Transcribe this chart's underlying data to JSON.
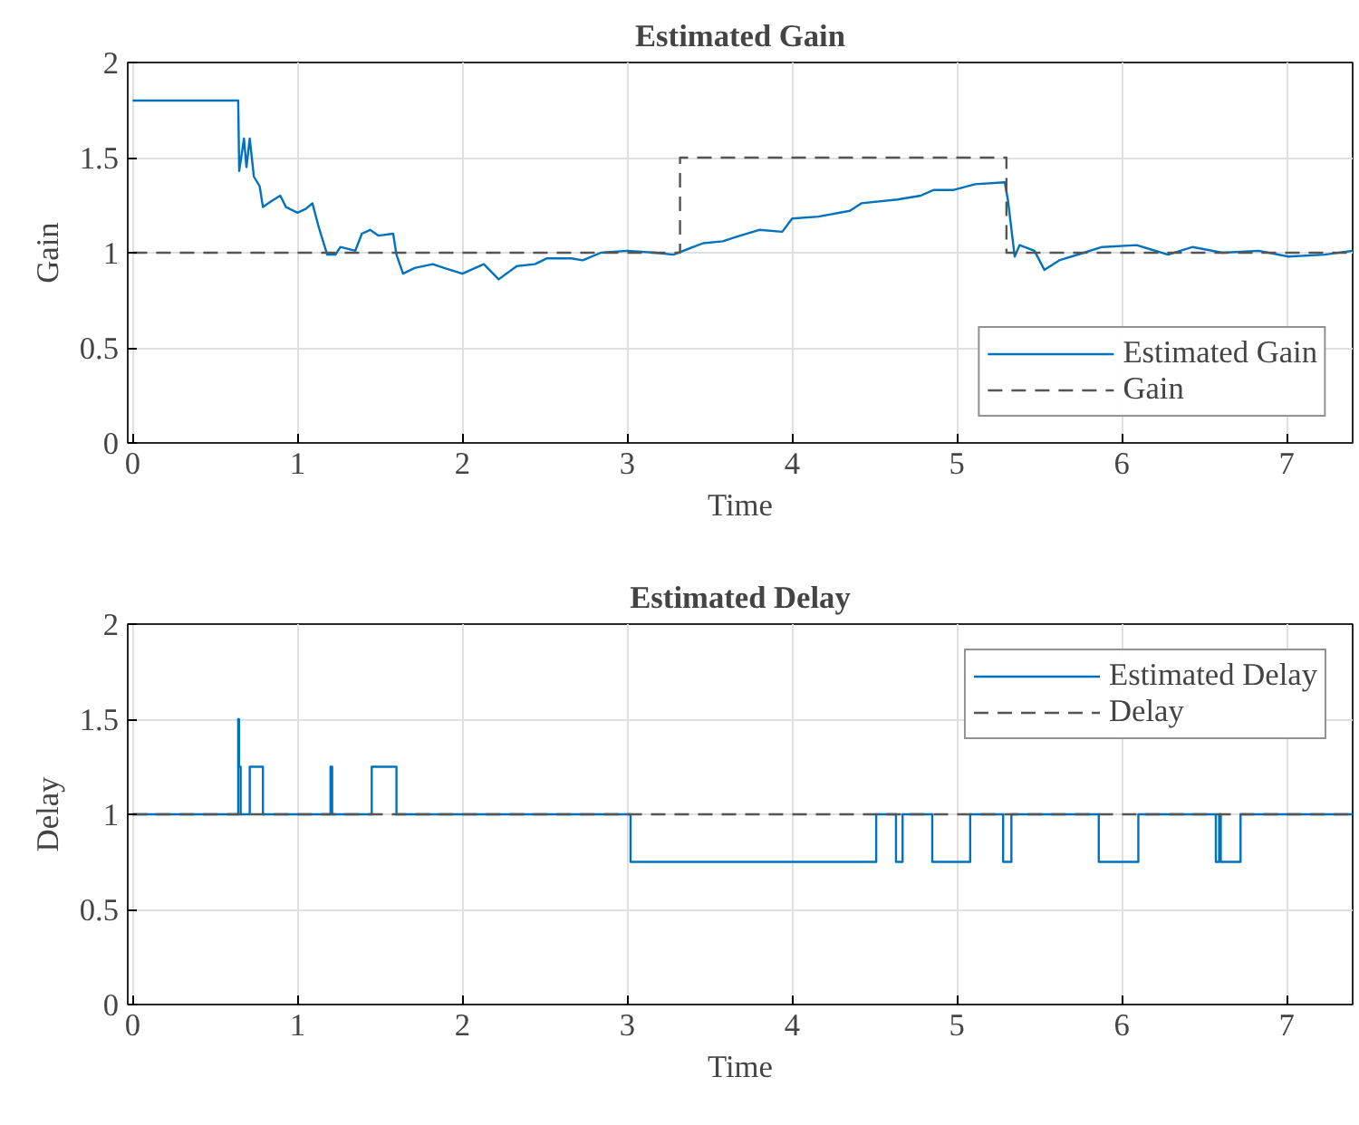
{
  "chart_data": [
    {
      "type": "line",
      "title": "Estimated Gain",
      "xlabel": "Time",
      "ylabel": "Gain",
      "xlim": [
        -0.03,
        7.4
      ],
      "ylim": [
        0,
        2
      ],
      "xticks": [
        0,
        1,
        2,
        3,
        4,
        5,
        6,
        7
      ],
      "yticks": [
        0,
        0.5,
        1,
        1.5,
        2
      ],
      "grid": true,
      "legend": "bottom right",
      "series": [
        {
          "name": "Estimated Gain",
          "color": "#0072bd",
          "line_style": "solid",
          "x": [
            0,
            0.64,
            0.646,
            0.675,
            0.69,
            0.71,
            0.735,
            0.77,
            0.79,
            0.84,
            0.895,
            0.93,
            1.0,
            1.05,
            1.09,
            1.13,
            1.18,
            1.23,
            1.26,
            1.35,
            1.39,
            1.44,
            1.49,
            1.58,
            1.6,
            1.64,
            1.71,
            1.82,
            1.89,
            2.0,
            2.13,
            2.22,
            2.33,
            2.44,
            2.51,
            2.66,
            2.73,
            2.84,
            3.0,
            3.17,
            3.28,
            3.46,
            3.58,
            3.65,
            3.8,
            3.94,
            4.0,
            4.16,
            4.35,
            4.42,
            4.64,
            4.78,
            4.86,
            4.98,
            5.11,
            5.29,
            5.31,
            5.35,
            5.38,
            5.47,
            5.53,
            5.62,
            5.77,
            5.88,
            6.09,
            6.28,
            6.43,
            6.61,
            6.83,
            7.01,
            7.23,
            7.4
          ],
          "values": [
            1.8,
            1.8,
            1.43,
            1.6,
            1.45,
            1.6,
            1.4,
            1.35,
            1.24,
            1.27,
            1.3,
            1.24,
            1.21,
            1.23,
            1.26,
            1.13,
            0.99,
            0.99,
            1.03,
            1.01,
            1.1,
            1.12,
            1.09,
            1.1,
            0.99,
            0.89,
            0.92,
            0.94,
            0.92,
            0.89,
            0.94,
            0.86,
            0.93,
            0.94,
            0.97,
            0.97,
            0.96,
            1.0,
            1.01,
            1.0,
            0.99,
            1.05,
            1.06,
            1.08,
            1.12,
            1.11,
            1.18,
            1.19,
            1.22,
            1.26,
            1.28,
            1.3,
            1.33,
            1.33,
            1.36,
            1.37,
            1.27,
            0.98,
            1.04,
            1.01,
            0.91,
            0.96,
            1.0,
            1.03,
            1.04,
            0.99,
            1.03,
            1.0,
            1.01,
            0.98,
            0.99,
            1.01
          ]
        },
        {
          "name": "Gain",
          "type": "step",
          "color": "#555555",
          "line_style": "dashed",
          "x": [
            0,
            3.32,
            5.3,
            7.4
          ],
          "values": [
            1,
            1.5,
            1,
            1
          ]
        }
      ]
    },
    {
      "type": "step",
      "title": "Estimated Delay",
      "xlabel": "Time",
      "ylabel": "Delay",
      "xlim": [
        -0.03,
        7.4
      ],
      "ylim": [
        0,
        2
      ],
      "xticks": [
        0,
        1,
        2,
        3,
        4,
        5,
        6,
        7
      ],
      "yticks": [
        0,
        0.5,
        1,
        1.5,
        2
      ],
      "grid": true,
      "legend": "top right",
      "series": [
        {
          "name": "Estimated Delay",
          "color": "#0072bd",
          "line_style": "solid",
          "x": [
            0,
            0.64,
            0.645,
            0.655,
            0.71,
            0.79,
            1.2,
            1.21,
            1.45,
            1.6,
            3.02,
            4.51,
            4.63,
            4.67,
            4.85,
            5.08,
            5.28,
            5.33,
            5.86,
            6.1,
            6.57,
            6.59,
            6.6,
            6.72,
            7.4
          ],
          "values": [
            1,
            1.5,
            1.25,
            1,
            1.25,
            1,
            1.25,
            1,
            1.25,
            1,
            0.75,
            1,
            0.75,
            1,
            0.75,
            1,
            0.75,
            1,
            0.75,
            1,
            0.75,
            1,
            0.75,
            1,
            1
          ]
        },
        {
          "name": "Delay",
          "color": "#555555",
          "line_style": "dashed",
          "x": [
            0,
            7.4
          ],
          "values": [
            1,
            1
          ]
        }
      ]
    }
  ]
}
